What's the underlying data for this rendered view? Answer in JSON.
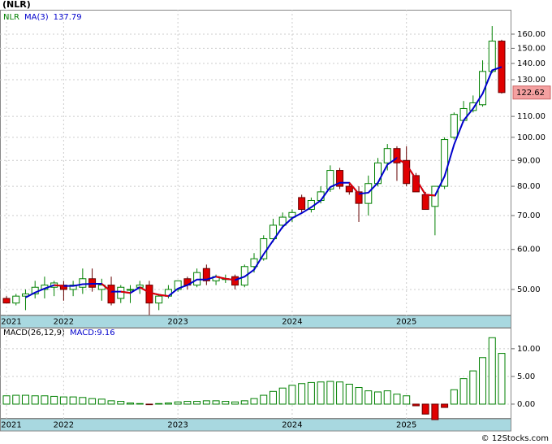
{
  "title": "(NLR)",
  "watermark": "© 12Stocks.com",
  "chart_data": [
    {
      "type": "candlestick",
      "categories": [
        "2021",
        null,
        null,
        null,
        null,
        null,
        "2022",
        null,
        null,
        null,
        null,
        null,
        null,
        null,
        null,
        null,
        null,
        null,
        "2023",
        null,
        null,
        null,
        null,
        null,
        null,
        null,
        null,
        null,
        null,
        null,
        "2024",
        null,
        null,
        null,
        null,
        null,
        null,
        null,
        null,
        null,
        null,
        null,
        "2025",
        null,
        null,
        null,
        null,
        null,
        null,
        null,
        null,
        null,
        null
      ],
      "candles": {
        "name": "NLR",
        "color": "#008000",
        "down_color": "#e00000",
        "open": [
          48,
          47,
          48.5,
          49,
          50,
          50.5,
          51,
          50,
          50.5,
          52.5,
          50,
          51,
          48,
          50,
          50.5,
          51,
          47,
          48.5,
          50,
          52.5,
          51,
          55,
          52,
          52.5,
          53,
          51,
          55.5,
          57.5,
          63,
          67,
          69.5,
          76,
          72,
          75,
          79,
          86,
          80,
          78,
          74,
          81,
          89,
          95,
          90,
          84,
          77,
          73,
          80,
          100,
          108,
          113,
          116,
          135,
          155
        ],
        "high": [
          48.5,
          49,
          50,
          52,
          53,
          52,
          52,
          52,
          55,
          55,
          52.5,
          53,
          51,
          51,
          52,
          52,
          49,
          51,
          52,
          53,
          55,
          56,
          53.5,
          53.5,
          53.5,
          56,
          59,
          64,
          69,
          71,
          72,
          77,
          76,
          80,
          88,
          87,
          81,
          80,
          84,
          91,
          97,
          96,
          96,
          85,
          78,
          80,
          100,
          112,
          118,
          121,
          142,
          166,
          156
        ],
        "low": [
          47,
          46.5,
          45.5,
          48,
          48,
          48.5,
          47.5,
          48.5,
          49,
          49.5,
          47.5,
          46.5,
          47,
          47,
          49,
          44.5,
          45.5,
          48,
          49.5,
          50,
          50.5,
          51,
          51,
          51.5,
          50,
          50.5,
          54,
          57,
          62,
          66,
          68,
          71,
          71,
          74,
          78,
          79,
          77,
          68,
          70,
          80,
          86,
          82,
          80,
          78,
          72,
          64,
          79,
          99,
          107,
          112,
          115,
          134,
          122
        ],
        "close": [
          47,
          48.5,
          49,
          50.5,
          51,
          51.5,
          50,
          51,
          52.5,
          50.5,
          51,
          47,
          50.5,
          50,
          51,
          47,
          48.5,
          50,
          52,
          51,
          54,
          52,
          53,
          52.5,
          51,
          55.5,
          57.5,
          63,
          67,
          69.5,
          71,
          72,
          75,
          78,
          86,
          80,
          78,
          74,
          81,
          89,
          95,
          89,
          81,
          78,
          72,
          80,
          99,
          111,
          114,
          117,
          135,
          155,
          122.62
        ]
      },
      "ma": {
        "name": "MA(3)",
        "color": "#0000cc",
        "down_color": "#e00000",
        "values": [
          null,
          null,
          48.2,
          49.3,
          50.2,
          51,
          50.8,
          50.8,
          51.2,
          51.3,
          51.3,
          49.5,
          49.5,
          49.2,
          50.5,
          49.3,
          48.8,
          48.5,
          50.2,
          51,
          52.3,
          52.3,
          53,
          52.5,
          52.2,
          53,
          54.7,
          58.7,
          62.5,
          66.5,
          69.2,
          70.8,
          72.7,
          75,
          79.7,
          81.3,
          81.3,
          77.3,
          77.7,
          81.3,
          88.3,
          91,
          88.3,
          82.7,
          77,
          76.7,
          83.7,
          96.7,
          108,
          114,
          122,
          135.7,
          137.79
        ]
      },
      "log_scale": true,
      "grid": true,
      "ylim": [
        44.4,
        178.8
      ],
      "yticks": [
        {
          "value": 50,
          "label": "50.00"
        },
        {
          "value": 60,
          "label": "60.00"
        },
        {
          "value": 70,
          "label": "70.00"
        },
        {
          "value": 80,
          "label": "80.00"
        },
        {
          "value": 90,
          "label": "90.00"
        },
        {
          "value": 100,
          "label": "100.00"
        },
        {
          "value": 110,
          "label": "110.00"
        },
        {
          "value": 130,
          "label": "130.00"
        },
        {
          "value": 140,
          "label": "140.00"
        },
        {
          "value": 150,
          "label": "150.00"
        },
        {
          "value": 160,
          "label": "160.00"
        }
      ]
    },
    {
      "type": "bar",
      "title": "MACD(26,12,9)",
      "value_name": "MACD:",
      "categories": [
        "2021",
        null,
        null,
        null,
        null,
        null,
        "2022",
        null,
        null,
        null,
        null,
        null,
        null,
        null,
        null,
        null,
        null,
        null,
        "2023",
        null,
        null,
        null,
        null,
        null,
        null,
        null,
        null,
        null,
        null,
        null,
        "2024",
        null,
        null,
        null,
        null,
        null,
        null,
        null,
        null,
        null,
        null,
        null,
        "2025",
        null,
        null,
        null,
        null,
        null,
        null,
        null,
        null,
        null,
        null
      ],
      "values": [
        1.5,
        1.6,
        1.6,
        1.5,
        1.5,
        1.4,
        1.3,
        1.3,
        1.2,
        1.0,
        0.9,
        0.6,
        0.5,
        0.2,
        0.1,
        -0.1,
        0.1,
        0.2,
        0.4,
        0.5,
        0.5,
        0.6,
        0.6,
        0.5,
        0.4,
        0.6,
        1.0,
        1.6,
        2.3,
        2.9,
        3.4,
        3.7,
        3.9,
        4.0,
        4.1,
        4.0,
        3.6,
        3.0,
        2.4,
        2.2,
        2.4,
        1.8,
        1.5,
        -0.3,
        -1.8,
        -2.8,
        -0.6,
        2.6,
        4.6,
        6.0,
        8.4,
        12.0,
        9.16
      ],
      "color": "#008000",
      "down_color": "#e00000",
      "grid": true,
      "ylim": [
        -2.65,
        13.8
      ],
      "yticks": [
        {
          "value": 0,
          "label": "0.00"
        },
        {
          "value": 5,
          "label": "5.00"
        },
        {
          "value": 10,
          "label": "10.00"
        }
      ]
    }
  ]
}
